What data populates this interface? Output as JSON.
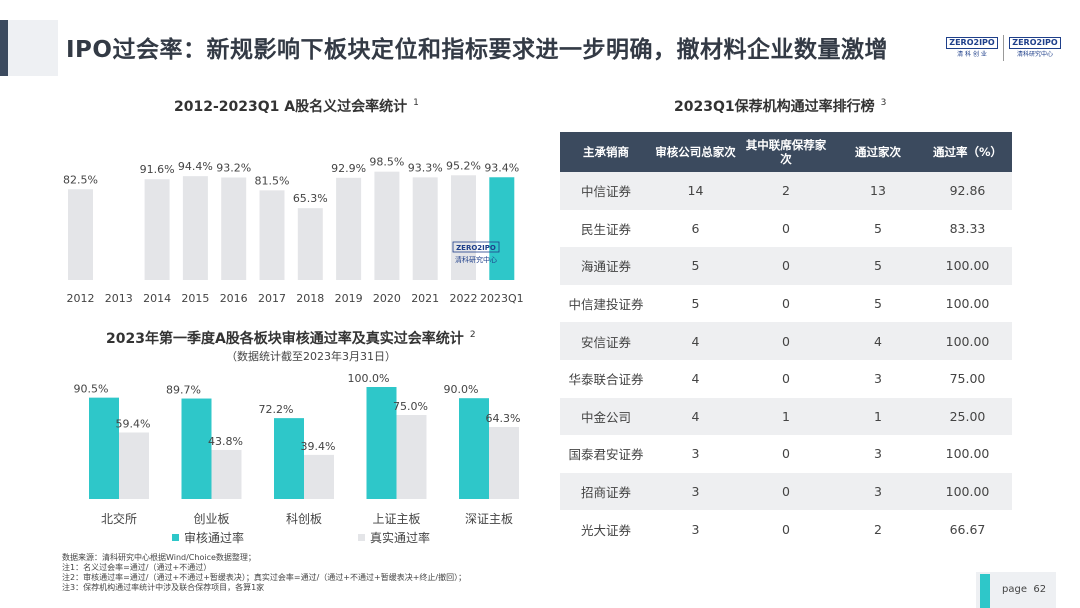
{
  "page": {
    "title": "IPO过会率：新规影响下板块定位和指标要求进一步明确，撤材料企业数量激增",
    "page_label": "page",
    "page_number": "62"
  },
  "logos": {
    "logo1_top": "ZERO2IPO",
    "logo1_bottom": "清 科 创 业",
    "logo2_top": "ZERO2IPO",
    "logo2_bottom": "清科研究中心"
  },
  "watermark": {
    "top": "ZERO2IPO",
    "bottom": "清科研究中心"
  },
  "chart_data": [
    {
      "type": "bar",
      "title": "2012-2023Q1 A股名义过会率统计",
      "note_ref": "1",
      "categories": [
        "2012",
        "2013",
        "2014",
        "2015",
        "2016",
        "2017",
        "2018",
        "2019",
        "2020",
        "2021",
        "2022",
        "2023Q1"
      ],
      "values": [
        82.5,
        null,
        91.6,
        94.4,
        93.2,
        81.5,
        65.3,
        92.9,
        98.5,
        93.3,
        95.2,
        93.4
      ],
      "value_labels": [
        "82.5%",
        "",
        "91.6%",
        "94.4%",
        "93.2%",
        "81.5%",
        "65.3%",
        "92.9%",
        "98.5%",
        "93.3%",
        "95.2%",
        "93.4%"
      ],
      "colors": {
        "default": "#e4e5e8",
        "highlight": "#2ec7c9"
      },
      "highlight_index": 11,
      "ylim": [
        0,
        100
      ]
    },
    {
      "type": "bar",
      "title": "2023年第一季度A股各板块审核通过率及真实过会率统计",
      "note_ref": "2",
      "subtitle": "（数据统计截至2023年3月31日）",
      "categories": [
        "北交所",
        "创业板",
        "科创板",
        "上证主板",
        "深证主板"
      ],
      "series": [
        {
          "name": "审核通过率",
          "values": [
            90.5,
            89.7,
            72.2,
            100.0,
            90.0
          ],
          "labels": [
            "90.5%",
            "89.7%",
            "72.2%",
            "100.0%",
            "90.0%"
          ],
          "color": "#2ec7c9"
        },
        {
          "name": "真实通过率",
          "values": [
            59.4,
            43.8,
            39.4,
            75.0,
            64.3
          ],
          "labels": [
            "59.4%",
            "43.8%",
            "39.4%",
            "75.0%",
            "64.3%"
          ],
          "color": "#e4e5e8"
        }
      ],
      "ylim": [
        0,
        100
      ]
    },
    {
      "type": "table",
      "title": "2023Q1保荐机构通过率排行榜",
      "note_ref": "3",
      "columns": [
        "主承销商",
        "审核公司总家次",
        "其中联席保荐家次",
        "通过家次",
        "通过率（%）"
      ],
      "rows": [
        [
          "中信证券",
          "14",
          "2",
          "13",
          "92.86"
        ],
        [
          "民生证券",
          "6",
          "0",
          "5",
          "83.33"
        ],
        [
          "海通证券",
          "5",
          "0",
          "5",
          "100.00"
        ],
        [
          "中信建投证券",
          "5",
          "0",
          "5",
          "100.00"
        ],
        [
          "安信证券",
          "4",
          "0",
          "4",
          "100.00"
        ],
        [
          "华泰联合证券",
          "4",
          "0",
          "3",
          "75.00"
        ],
        [
          "中金公司",
          "4",
          "1",
          "1",
          "25.00"
        ],
        [
          "国泰君安证券",
          "3",
          "0",
          "3",
          "100.00"
        ],
        [
          "招商证券",
          "3",
          "0",
          "3",
          "100.00"
        ],
        [
          "光大证券",
          "3",
          "0",
          "2",
          "66.67"
        ]
      ]
    }
  ],
  "footnotes": [
    "数据来源：清科研究中心根据Wind/Choice数据整理；",
    "注1：名义过会率=通过/（通过+不通过）",
    "注2：审核通过率=通过/（通过+不通过+暂缓表决）；真实过会率=通过/（通过+不通过+暂缓表决+终止/撤回）；",
    "注3：保荐机构通过率统计中涉及联合保荐项目，各算1家"
  ]
}
